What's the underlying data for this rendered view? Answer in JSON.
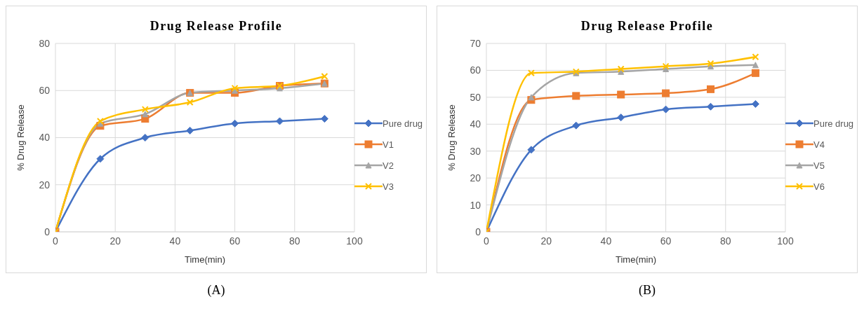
{
  "chart_data": [
    {
      "type": "line",
      "title": "Drug Release Profile",
      "xlabel": "Time(min)",
      "ylabel": "% Drug Release",
      "x": [
        0,
        15,
        30,
        45,
        60,
        75,
        90
      ],
      "xlim": [
        0,
        100
      ],
      "xticks": [
        0,
        20,
        40,
        60,
        80,
        100
      ],
      "ylim": [
        0,
        80
      ],
      "yticks": [
        0,
        20,
        40,
        60,
        80
      ],
      "grid": true,
      "legend": "right",
      "line_style": "solid",
      "annotations": [
        "(A)"
      ],
      "series": [
        {
          "name": "Pure drug",
          "color": "#4472c4",
          "marker": "diamond",
          "values": [
            0,
            31,
            40,
            43,
            46,
            47,
            48
          ]
        },
        {
          "name": "V1",
          "color": "#ed7d31",
          "marker": "square",
          "values": [
            0,
            45,
            48,
            59,
            59,
            62,
            63
          ]
        },
        {
          "name": "V2",
          "color": "#a5a5a5",
          "marker": "triangle",
          "values": [
            0,
            46,
            50,
            59,
            60,
            61,
            63
          ]
        },
        {
          "name": "V3",
          "color": "#ffc000",
          "marker": "cross",
          "values": [
            0,
            47,
            52,
            55,
            61,
            62,
            66
          ]
        }
      ]
    },
    {
      "type": "line",
      "title": "Drug Release Profile",
      "xlabel": "Time(min)",
      "ylabel": "% Drug Release",
      "x": [
        0,
        15,
        30,
        45,
        60,
        75,
        90
      ],
      "xlim": [
        0,
        100
      ],
      "xticks": [
        0,
        20,
        40,
        60,
        80,
        100
      ],
      "ylim": [
        0,
        70
      ],
      "yticks": [
        0,
        10,
        20,
        30,
        40,
        50,
        60,
        70
      ],
      "grid": true,
      "legend": "right",
      "line_style": "solid",
      "annotations": [
        "(B)"
      ],
      "series": [
        {
          "name": "Pure drug",
          "color": "#4472c4",
          "marker": "diamond",
          "values": [
            0,
            30.5,
            39.5,
            42.5,
            45.5,
            46.5,
            47.5
          ]
        },
        {
          "name": "V4",
          "color": "#ed7d31",
          "marker": "square",
          "values": [
            0,
            49,
            50.5,
            51,
            51.5,
            53,
            59
          ]
        },
        {
          "name": "V5",
          "color": "#a5a5a5",
          "marker": "triangle",
          "values": [
            0,
            50,
            59,
            59.5,
            60.5,
            61.5,
            62
          ]
        },
        {
          "name": "V6",
          "color": "#ffc000",
          "marker": "cross",
          "values": [
            0,
            59,
            59.5,
            60.5,
            61.5,
            62.5,
            65
          ]
        }
      ]
    }
  ]
}
